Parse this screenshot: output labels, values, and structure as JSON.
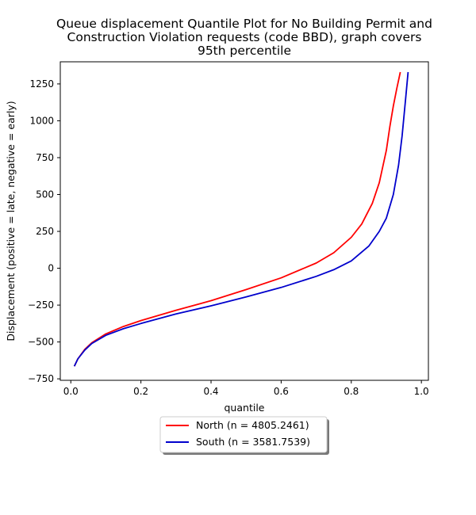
{
  "chart_data": {
    "type": "line",
    "title_lines": [
      "Queue displacement Quantile Plot for No Building Permit and",
      "Construction Violation  requests (code BBD), graph covers",
      "95th percentile"
    ],
    "xlabel": "quantile",
    "ylabel": "Displacement (positive = late, negative = early)",
    "xlim": [
      -0.03,
      1.02
    ],
    "ylim": [
      -760,
      1400
    ],
    "x_ticks": [
      0.0,
      0.2,
      0.4,
      0.6,
      0.8,
      1.0
    ],
    "x_tick_labels": [
      "0.0",
      "0.2",
      "0.4",
      "0.6",
      "0.8",
      "1.0"
    ],
    "y_ticks": [
      -750,
      -500,
      -250,
      0,
      250,
      500,
      750,
      1000,
      1250
    ],
    "y_tick_labels": [
      "−750",
      "−500",
      "−250",
      "0",
      "250",
      "500",
      "750",
      "1000",
      "1250"
    ],
    "grid": false,
    "legend_position": "bottom-center, below axes",
    "series": [
      {
        "name": "North (n = 4805.2461)",
        "color": "#ff0000",
        "x": [
          0.01,
          0.02,
          0.04,
          0.06,
          0.1,
          0.15,
          0.2,
          0.3,
          0.4,
          0.5,
          0.6,
          0.7,
          0.75,
          0.8,
          0.83,
          0.86,
          0.88,
          0.9,
          0.91,
          0.92,
          0.93,
          0.94
        ],
        "y": [
          -665,
          -615,
          -550,
          -505,
          -445,
          -395,
          -355,
          -285,
          -220,
          -145,
          -65,
          35,
          105,
          210,
          300,
          440,
          580,
          800,
          960,
          1100,
          1220,
          1330
        ]
      },
      {
        "name": "South (n = 3581.7539)",
        "color": "#0000cc",
        "x": [
          0.01,
          0.02,
          0.04,
          0.06,
          0.1,
          0.15,
          0.2,
          0.3,
          0.4,
          0.5,
          0.6,
          0.7,
          0.75,
          0.8,
          0.85,
          0.88,
          0.9,
          0.92,
          0.935,
          0.945,
          0.955,
          0.962
        ],
        "y": [
          -665,
          -615,
          -555,
          -510,
          -455,
          -410,
          -375,
          -310,
          -255,
          -195,
          -130,
          -55,
          -10,
          50,
          150,
          250,
          340,
          500,
          700,
          900,
          1150,
          1330
        ]
      }
    ]
  }
}
